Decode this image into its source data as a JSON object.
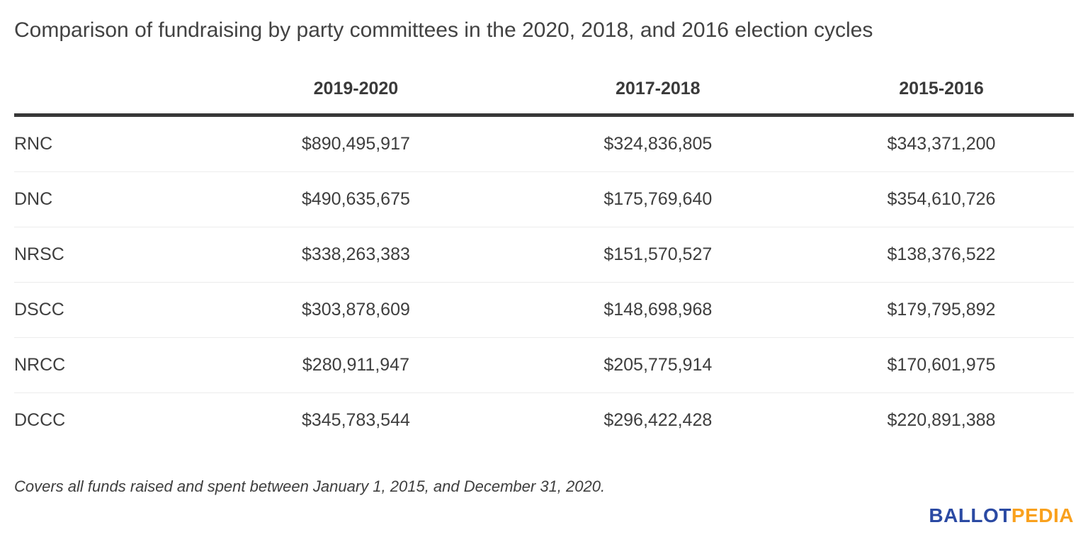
{
  "title": "Comparison of fundraising by party committees in the 2020, 2018, and 2016 election cycles",
  "table": {
    "column_headers": [
      "2019-2020",
      "2017-2018",
      "2015-2016"
    ],
    "rows": [
      {
        "committee": "RNC",
        "values": [
          "$890,495,917",
          "$324,836,805",
          "$343,371,200"
        ]
      },
      {
        "committee": "DNC",
        "values": [
          "$490,635,675",
          "$175,769,640",
          "$354,610,726"
        ]
      },
      {
        "committee": "NRSC",
        "values": [
          "$338,263,383",
          "$151,570,527",
          "$138,376,522"
        ]
      },
      {
        "committee": "DSCC",
        "values": [
          "$303,878,609",
          "$148,698,968",
          "$179,795,892"
        ]
      },
      {
        "committee": "NRCC",
        "values": [
          "$280,911,947",
          "$205,775,914",
          "$170,601,975"
        ]
      },
      {
        "committee": "DCCC",
        "values": [
          "$345,783,544",
          "$296,422,428",
          "$220,891,388"
        ]
      }
    ]
  },
  "footnote": "Covers all funds raised and spent between January 1, 2015, and December 31, 2020.",
  "logo": {
    "part1": "BALLOT",
    "part2": "PEDIA",
    "part1_color": "#2b4aa3",
    "part2_color": "#f9a11e"
  },
  "colors": {
    "background": "#ffffff",
    "text": "#3e3e3e",
    "header_border": "#383838",
    "row_divider": "#ececec"
  },
  "chart_data": {
    "type": "table",
    "title": "Comparison of fundraising by party committees in the 2020, 2018, and 2016 election cycles",
    "categories": [
      "RNC",
      "DNC",
      "NRSC",
      "DSCC",
      "NRCC",
      "DCCC"
    ],
    "series": [
      {
        "name": "2019-2020",
        "values": [
          890495917,
          490635675,
          338263383,
          303878609,
          280911947,
          345783544
        ]
      },
      {
        "name": "2017-2018",
        "values": [
          324836805,
          175769640,
          151570527,
          148698968,
          205775914,
          296422428
        ]
      },
      {
        "name": "2015-2016",
        "values": [
          343371200,
          354610726,
          138376522,
          179795892,
          170601975,
          220891388
        ]
      }
    ],
    "note": "Covers all funds raised and spent between January 1, 2015, and December 31, 2020."
  }
}
